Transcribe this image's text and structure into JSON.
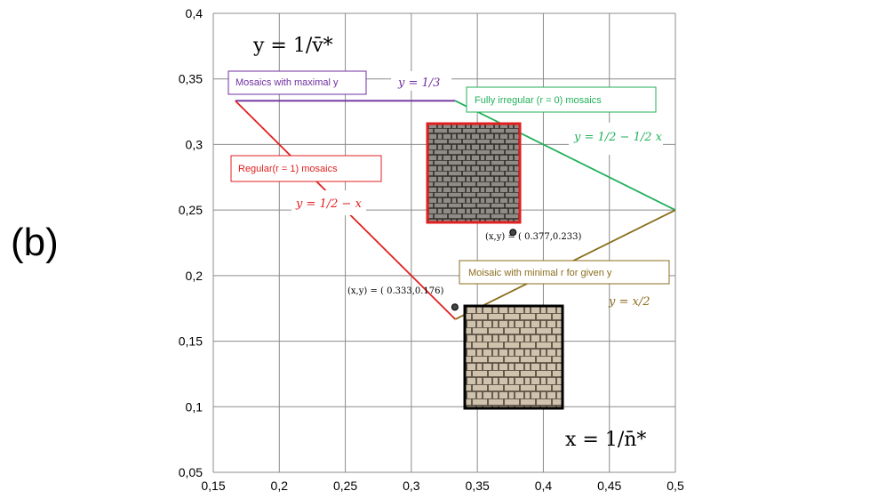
{
  "panel_label": "(b)",
  "chart_data": {
    "type": "line",
    "xlim": [
      0.15,
      0.5
    ],
    "ylim": [
      0.05,
      0.4
    ],
    "xticks": [
      0.15,
      0.2,
      0.25,
      0.3,
      0.35,
      0.4,
      0.45,
      0.5
    ],
    "yticks": [
      0.05,
      0.1,
      0.15,
      0.2,
      0.25,
      0.3,
      0.35,
      0.4
    ],
    "xtick_labels": [
      "0,15",
      "0,2",
      "0,25",
      "0,3",
      "0,35",
      "0,4",
      "0,45",
      "0,5"
    ],
    "ytick_labels": [
      "0,05",
      "0,1",
      "0,15",
      "0,2",
      "0,25",
      "0,3",
      "0,35",
      "0,4"
    ],
    "grid": true,
    "xlabel": "x = 1/n̄*",
    "ylabel": "y = 1/v̄*",
    "series": [
      {
        "name": "Mosaics with maximal y",
        "formula": "y = 1/3",
        "color": "#7030a0",
        "x": [
          0.1667,
          0.3333
        ],
        "y": [
          0.3333,
          0.3333
        ]
      },
      {
        "name": "Regular(r = 1) mosaics",
        "formula": "y = 1/2 − x",
        "color": "#e02020",
        "x": [
          0.1667,
          0.3333
        ],
        "y": [
          0.3333,
          0.1667
        ]
      },
      {
        "name": "Fully irregular (r = 0) mosaics",
        "formula": "y = 1/2 − 1/2 x",
        "color": "#22b05a",
        "x": [
          0.3333,
          0.5
        ],
        "y": [
          0.3333,
          0.25
        ]
      },
      {
        "name": "Moisaic with minimal r for given y",
        "formula": "y = x/2",
        "color": "#8a6d1c",
        "x": [
          0.3333,
          0.5
        ],
        "y": [
          0.1667,
          0.25
        ]
      }
    ],
    "points": [
      {
        "label": "(x,y) = ( 0.377,0.233)",
        "x": 0.377,
        "y": 0.233
      },
      {
        "label": "(x,y) = ( 0.333,0.176)",
        "x": 0.333,
        "y": 0.176
      }
    ]
  }
}
